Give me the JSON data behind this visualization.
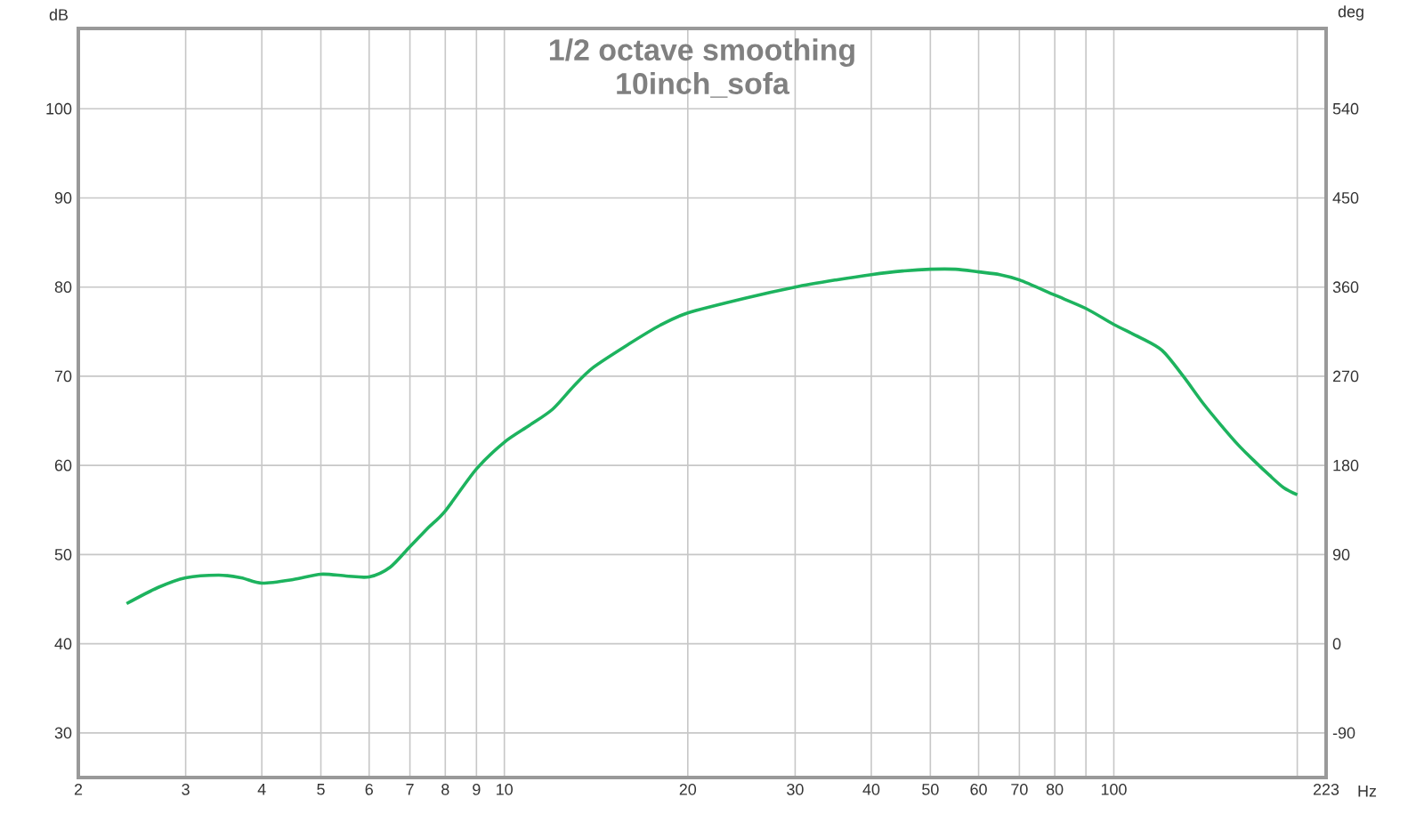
{
  "chart_data": {
    "type": "line",
    "title": "1/2 octave smoothing",
    "subtitle": "10inch_sofa",
    "xlabel": "Hz",
    "ylabel": "dB",
    "y2label": "deg",
    "x": [
      2.4,
      2.7,
      3,
      3.4,
      3.7,
      4,
      4.5,
      5,
      5.5,
      6,
      6.5,
      7,
      7.5,
      8,
      9,
      10,
      11,
      12,
      13,
      14,
      16,
      18,
      20,
      25,
      30,
      35,
      40,
      45,
      50,
      55,
      60,
      65,
      70,
      80,
      90,
      100,
      110,
      120,
      130,
      140,
      150,
      160,
      170,
      180,
      190,
      200
    ],
    "values": [
      44.5,
      46.3,
      47.4,
      47.7,
      47.4,
      46.8,
      47.2,
      47.8,
      47.6,
      47.5,
      48.6,
      50.9,
      53.0,
      54.9,
      59.6,
      62.6,
      64.5,
      66.3,
      68.9,
      71.0,
      73.6,
      75.7,
      77.1,
      78.8,
      80.0,
      80.8,
      81.4,
      81.8,
      82.0,
      82.0,
      81.7,
      81.4,
      80.8,
      79.1,
      77.6,
      75.8,
      74.4,
      72.9,
      70.0,
      67.0,
      64.5,
      62.3,
      60.5,
      58.9,
      57.5,
      56.7
    ],
    "color": "#1db35e",
    "log": "x",
    "grid": true,
    "xlim": [
      2,
      223
    ],
    "ylim": [
      25,
      109
    ],
    "y2lim": [
      -135,
      621
    ],
    "xticks": [
      2,
      3,
      4,
      5,
      6,
      7,
      8,
      9,
      10,
      20,
      30,
      40,
      50,
      60,
      70,
      80,
      {
        "value": 90,
        "label": null
      },
      100,
      {
        "value": 200,
        "label": null
      },
      223
    ],
    "yticks": [
      30,
      40,
      50,
      60,
      70,
      80,
      90,
      100
    ],
    "y2ticks": [
      -90,
      0,
      90,
      180,
      270,
      360,
      450,
      540
    ]
  }
}
